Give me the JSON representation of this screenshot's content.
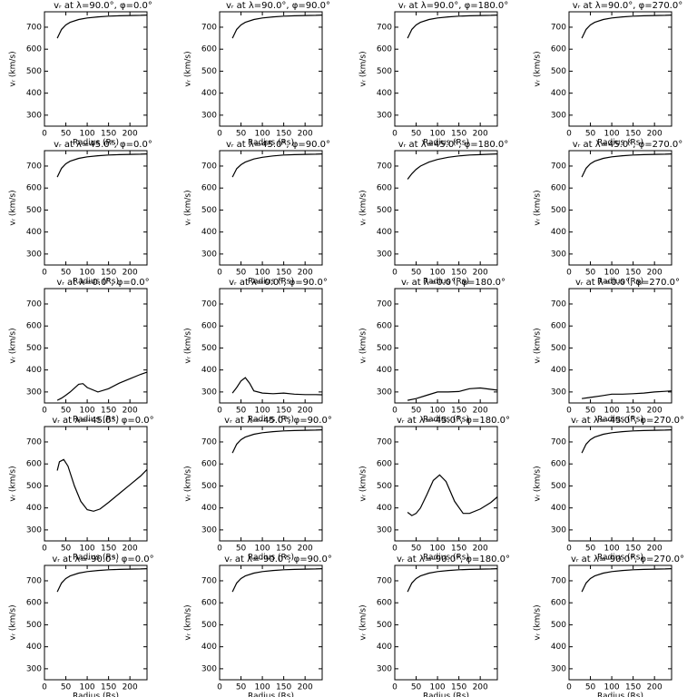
{
  "chart_data": [
    {
      "type": "line",
      "title": "vᵣ at λ=90.0°, φ=0.0°",
      "x_label": "Radius (Rs)",
      "y_label": "vᵣ (km/s)",
      "x": [
        30,
        40,
        50,
        60,
        80,
        100,
        125,
        150,
        175,
        200,
        225,
        240
      ],
      "values": [
        650,
        690,
        710,
        722,
        735,
        742,
        747,
        750,
        752,
        753,
        754,
        755
      ],
      "xlim": [
        0,
        240
      ],
      "ylim": [
        250,
        770
      ],
      "xticks": [
        0,
        50,
        100,
        150,
        200
      ],
      "yticks": [
        300,
        400,
        500,
        600,
        700
      ],
      "color": "#000000"
    },
    {
      "type": "line",
      "title": "vᵣ at λ=90.0°, φ=90.0°",
      "x_label": "Radius (Rs)",
      "y_label": "vᵣ (km/s)",
      "x": [
        30,
        40,
        50,
        60,
        80,
        100,
        125,
        150,
        175,
        200,
        225,
        240
      ],
      "values": [
        650,
        690,
        710,
        722,
        735,
        742,
        747,
        750,
        752,
        753,
        754,
        755
      ],
      "xlim": [
        0,
        240
      ],
      "ylim": [
        250,
        770
      ],
      "xticks": [
        0,
        50,
        100,
        150,
        200
      ],
      "yticks": [
        300,
        400,
        500,
        600,
        700
      ],
      "color": "#000000"
    },
    {
      "type": "line",
      "title": "vᵣ at λ=90.0°, φ=180.0°",
      "x_label": "Radius (Rs)",
      "y_label": "vᵣ (km/s)",
      "x": [
        30,
        40,
        50,
        60,
        80,
        100,
        125,
        150,
        175,
        200,
        225,
        240
      ],
      "values": [
        650,
        690,
        710,
        722,
        735,
        742,
        747,
        750,
        752,
        753,
        754,
        755
      ],
      "xlim": [
        0,
        240
      ],
      "ylim": [
        250,
        770
      ],
      "xticks": [
        0,
        50,
        100,
        150,
        200
      ],
      "yticks": [
        300,
        400,
        500,
        600,
        700
      ],
      "color": "#000000"
    },
    {
      "type": "line",
      "title": "vᵣ at λ=90.0°, φ=270.0°",
      "x_label": "Radius (Rs)",
      "y_label": "vᵣ (km/s)",
      "x": [
        30,
        40,
        50,
        60,
        80,
        100,
        125,
        150,
        175,
        200,
        225,
        240
      ],
      "values": [
        650,
        690,
        710,
        722,
        735,
        742,
        747,
        750,
        752,
        753,
        754,
        755
      ],
      "xlim": [
        0,
        240
      ],
      "ylim": [
        250,
        770
      ],
      "xticks": [
        0,
        50,
        100,
        150,
        200
      ],
      "yticks": [
        300,
        400,
        500,
        600,
        700
      ],
      "color": "#000000"
    },
    {
      "type": "line",
      "title": "vᵣ at λ=45.0°, φ=0.0°",
      "x_label": "Radius (Rs)",
      "y_label": "vᵣ (km/s)",
      "x": [
        30,
        40,
        50,
        60,
        80,
        100,
        125,
        150,
        175,
        200,
        225,
        240
      ],
      "values": [
        650,
        690,
        710,
        722,
        735,
        742,
        747,
        750,
        752,
        753,
        754,
        755
      ],
      "xlim": [
        0,
        240
      ],
      "ylim": [
        250,
        770
      ],
      "xticks": [
        0,
        50,
        100,
        150,
        200
      ],
      "yticks": [
        300,
        400,
        500,
        600,
        700
      ],
      "color": "#000000"
    },
    {
      "type": "line",
      "title": "vᵣ at λ=45.0°, φ=90.0°",
      "x_label": "Radius (Rs)",
      "y_label": "vᵣ (km/s)",
      "x": [
        30,
        40,
        50,
        60,
        80,
        100,
        125,
        150,
        175,
        200,
        225,
        240
      ],
      "values": [
        650,
        688,
        706,
        718,
        732,
        740,
        746,
        750,
        752,
        753,
        754,
        755
      ],
      "xlim": [
        0,
        240
      ],
      "ylim": [
        250,
        770
      ],
      "xticks": [
        0,
        50,
        100,
        150,
        200
      ],
      "yticks": [
        300,
        400,
        500,
        600,
        700
      ],
      "color": "#000000"
    },
    {
      "type": "line",
      "title": "vᵣ at λ=45.0°, φ=180.0°",
      "x_label": "Radius (Rs)",
      "y_label": "vᵣ (km/s)",
      "x": [
        30,
        40,
        50,
        60,
        80,
        100,
        125,
        150,
        175,
        200,
        225,
        240
      ],
      "values": [
        640,
        665,
        685,
        700,
        718,
        730,
        740,
        746,
        750,
        752,
        754,
        755
      ],
      "xlim": [
        0,
        240
      ],
      "ylim": [
        250,
        770
      ],
      "xticks": [
        0,
        50,
        100,
        150,
        200
      ],
      "yticks": [
        300,
        400,
        500,
        600,
        700
      ],
      "color": "#000000"
    },
    {
      "type": "line",
      "title": "vᵣ at λ=45.0°, φ=270.0°",
      "x_label": "Radius (Rs)",
      "y_label": "vᵣ (km/s)",
      "x": [
        30,
        40,
        50,
        60,
        80,
        100,
        125,
        150,
        175,
        200,
        225,
        240
      ],
      "values": [
        650,
        690,
        710,
        722,
        735,
        742,
        747,
        750,
        752,
        753,
        754,
        755
      ],
      "xlim": [
        0,
        240
      ],
      "ylim": [
        250,
        770
      ],
      "xticks": [
        0,
        50,
        100,
        150,
        200
      ],
      "yticks": [
        300,
        400,
        500,
        600,
        700
      ],
      "color": "#000000"
    },
    {
      "type": "line",
      "title": "vᵣ at λ=0.0°, φ=0.0°",
      "x_label": "Radius (Rs)",
      "y_label": "vᵣ (km/s)",
      "x": [
        30,
        40,
        50,
        60,
        80,
        90,
        100,
        125,
        150,
        175,
        200,
        225,
        240
      ],
      "values": [
        262,
        272,
        285,
        300,
        335,
        338,
        320,
        300,
        315,
        340,
        360,
        380,
        390
      ],
      "xlim": [
        0,
        240
      ],
      "ylim": [
        250,
        770
      ],
      "xticks": [
        0,
        50,
        100,
        150,
        200
      ],
      "yticks": [
        300,
        400,
        500,
        600,
        700
      ],
      "color": "#000000"
    },
    {
      "type": "line",
      "title": "vᵣ at λ=0.0°, φ=90.0°",
      "x_label": "Radius (Rs)",
      "y_label": "vᵣ (km/s)",
      "x": [
        30,
        40,
        50,
        60,
        70,
        80,
        100,
        125,
        150,
        175,
        200,
        225,
        240
      ],
      "values": [
        295,
        320,
        350,
        365,
        340,
        305,
        295,
        292,
        295,
        290,
        288,
        288,
        287
      ],
      "xlim": [
        0,
        240
      ],
      "ylim": [
        250,
        770
      ],
      "xticks": [
        0,
        50,
        100,
        150,
        200
      ],
      "yticks": [
        300,
        400,
        500,
        600,
        700
      ],
      "color": "#000000"
    },
    {
      "type": "line",
      "title": "vᵣ at λ=0.0°, φ=180.0°",
      "x_label": "Radius (Rs)",
      "y_label": "vᵣ (km/s)",
      "x": [
        30,
        50,
        75,
        100,
        125,
        150,
        175,
        200,
        225,
        240
      ],
      "values": [
        262,
        270,
        285,
        300,
        300,
        302,
        315,
        318,
        312,
        308
      ],
      "xlim": [
        0,
        240
      ],
      "ylim": [
        250,
        770
      ],
      "xticks": [
        0,
        50,
        100,
        150,
        200
      ],
      "yticks": [
        300,
        400,
        500,
        600,
        700
      ],
      "color": "#000000"
    },
    {
      "type": "line",
      "title": "vᵣ at λ=0.0°, φ=270.0°",
      "x_label": "Radius (Rs)",
      "y_label": "vᵣ (km/s)",
      "x": [
        30,
        50,
        75,
        100,
        125,
        150,
        175,
        200,
        225,
        240
      ],
      "values": [
        270,
        275,
        282,
        290,
        290,
        292,
        295,
        300,
        303,
        305
      ],
      "xlim": [
        0,
        240
      ],
      "ylim": [
        250,
        770
      ],
      "xticks": [
        0,
        50,
        100,
        150,
        200
      ],
      "yticks": [
        300,
        400,
        500,
        600,
        700
      ],
      "color": "#000000"
    },
    {
      "type": "line",
      "title": "vᵣ at λ=-45.0°, φ=0.0°",
      "x_label": "Radius (Rs)",
      "y_label": "vᵣ (km/s)",
      "x": [
        30,
        35,
        45,
        55,
        70,
        85,
        100,
        115,
        130,
        150,
        175,
        200,
        225,
        240
      ],
      "values": [
        570,
        610,
        620,
        590,
        500,
        430,
        392,
        385,
        395,
        425,
        465,
        505,
        545,
        575
      ],
      "xlim": [
        0,
        240
      ],
      "ylim": [
        250,
        770
      ],
      "xticks": [
        0,
        50,
        100,
        150,
        200
      ],
      "yticks": [
        300,
        400,
        500,
        600,
        700
      ],
      "color": "#000000"
    },
    {
      "type": "line",
      "title": "vᵣ at λ=-45.0°, φ=90.0°",
      "x_label": "Radius (Rs)",
      "y_label": "vᵣ (km/s)",
      "x": [
        30,
        40,
        50,
        60,
        80,
        100,
        125,
        150,
        175,
        200,
        225,
        240
      ],
      "values": [
        650,
        690,
        710,
        722,
        735,
        742,
        747,
        750,
        752,
        753,
        754,
        755
      ],
      "xlim": [
        0,
        240
      ],
      "ylim": [
        250,
        770
      ],
      "xticks": [
        0,
        50,
        100,
        150,
        200
      ],
      "yticks": [
        300,
        400,
        500,
        600,
        700
      ],
      "color": "#000000"
    },
    {
      "type": "line",
      "title": "vᵣ at λ=-45.0°, φ=180.0°",
      "x_label": "Radius (Rs)",
      "y_label": "vᵣ (km/s)",
      "x": [
        30,
        40,
        50,
        60,
        75,
        90,
        105,
        120,
        140,
        160,
        175,
        200,
        225,
        240
      ],
      "values": [
        380,
        365,
        375,
        400,
        460,
        525,
        550,
        520,
        430,
        375,
        375,
        395,
        425,
        450
      ],
      "xlim": [
        0,
        240
      ],
      "ylim": [
        250,
        770
      ],
      "xticks": [
        0,
        50,
        100,
        150,
        200
      ],
      "yticks": [
        300,
        400,
        500,
        600,
        700
      ],
      "color": "#000000"
    },
    {
      "type": "line",
      "title": "vᵣ at λ=-45.0°, φ=270.0°",
      "x_label": "Radius (Rs)",
      "y_label": "vᵣ (km/s)",
      "x": [
        30,
        40,
        50,
        60,
        80,
        100,
        125,
        150,
        175,
        200,
        225,
        240
      ],
      "values": [
        650,
        690,
        710,
        722,
        735,
        742,
        747,
        750,
        752,
        753,
        754,
        755
      ],
      "xlim": [
        0,
        240
      ],
      "ylim": [
        250,
        770
      ],
      "xticks": [
        0,
        50,
        100,
        150,
        200
      ],
      "yticks": [
        300,
        400,
        500,
        600,
        700
      ],
      "color": "#000000"
    },
    {
      "type": "line",
      "title": "vᵣ at λ=-90.0°, φ=0.0°",
      "x_label": "Radius (Rs)",
      "y_label": "vᵣ (km/s)",
      "x": [
        30,
        40,
        50,
        60,
        80,
        100,
        125,
        150,
        175,
        200,
        225,
        240
      ],
      "values": [
        650,
        690,
        710,
        722,
        735,
        742,
        747,
        750,
        752,
        753,
        754,
        755
      ],
      "xlim": [
        0,
        240
      ],
      "ylim": [
        250,
        770
      ],
      "xticks": [
        0,
        50,
        100,
        150,
        200
      ],
      "yticks": [
        300,
        400,
        500,
        600,
        700
      ],
      "color": "#000000"
    },
    {
      "type": "line",
      "title": "vᵣ at λ=-90.0°, φ=90.0°",
      "x_label": "Radius (Rs)",
      "y_label": "vᵣ (km/s)",
      "x": [
        30,
        40,
        50,
        60,
        80,
        100,
        125,
        150,
        175,
        200,
        225,
        240
      ],
      "values": [
        650,
        690,
        710,
        722,
        735,
        742,
        747,
        750,
        752,
        753,
        754,
        755
      ],
      "xlim": [
        0,
        240
      ],
      "ylim": [
        250,
        770
      ],
      "xticks": [
        0,
        50,
        100,
        150,
        200
      ],
      "yticks": [
        300,
        400,
        500,
        600,
        700
      ],
      "color": "#000000"
    },
    {
      "type": "line",
      "title": "vᵣ at λ=-90.0°, φ=180.0°",
      "x_label": "Radius (Rs)",
      "y_label": "vᵣ (km/s)",
      "x": [
        30,
        40,
        50,
        60,
        80,
        100,
        125,
        150,
        175,
        200,
        225,
        240
      ],
      "values": [
        650,
        690,
        710,
        722,
        735,
        742,
        747,
        750,
        752,
        753,
        754,
        755
      ],
      "xlim": [
        0,
        240
      ],
      "ylim": [
        250,
        770
      ],
      "xticks": [
        0,
        50,
        100,
        150,
        200
      ],
      "yticks": [
        300,
        400,
        500,
        600,
        700
      ],
      "color": "#000000"
    },
    {
      "type": "line",
      "title": "vᵣ at λ=-90.0°, φ=270.0°",
      "x_label": "Radius (Rs)",
      "y_label": "vᵣ (km/s)",
      "x": [
        30,
        40,
        50,
        60,
        80,
        100,
        125,
        150,
        175,
        200,
        225,
        240
      ],
      "values": [
        650,
        690,
        710,
        722,
        735,
        742,
        747,
        750,
        752,
        753,
        754,
        755
      ],
      "xlim": [
        0,
        240
      ],
      "ylim": [
        250,
        770
      ],
      "xticks": [
        0,
        50,
        100,
        150,
        200
      ],
      "yticks": [
        300,
        400,
        500,
        600,
        700
      ],
      "color": "#000000"
    }
  ]
}
